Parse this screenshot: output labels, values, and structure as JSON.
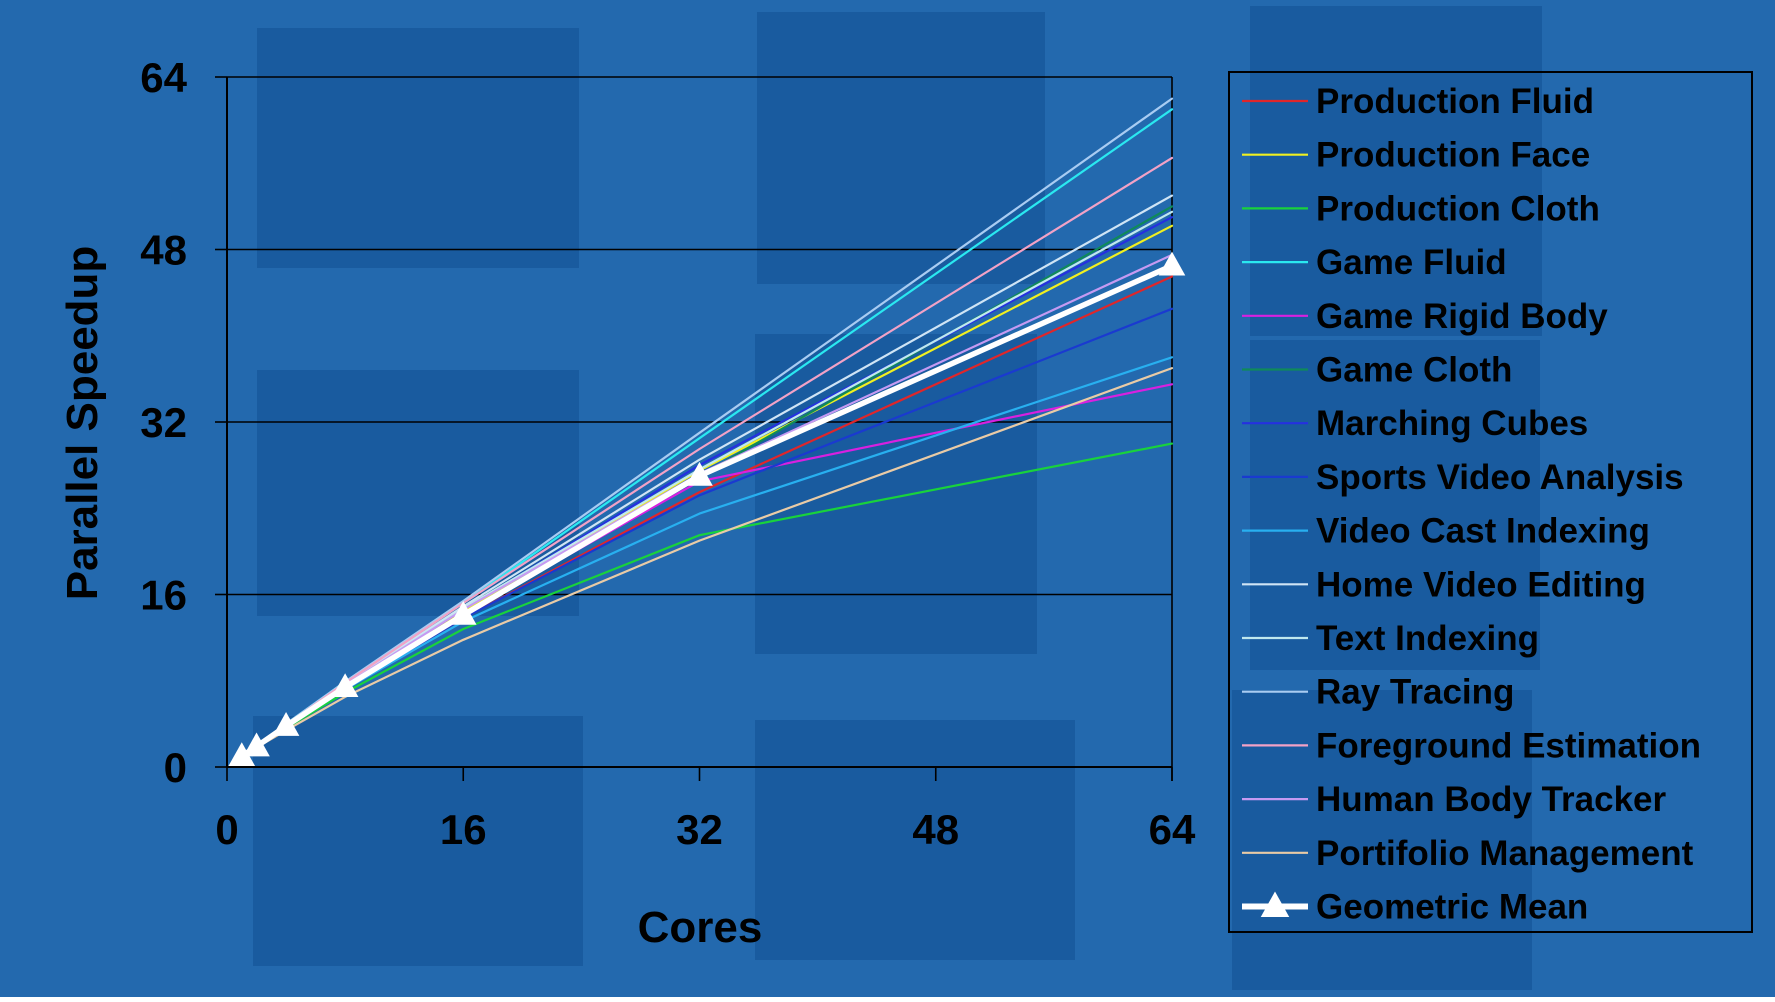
{
  "colors": {
    "background": "#2369ae",
    "panel": "#17579a",
    "axis": "#000000",
    "text": "#000000"
  },
  "chart_data": {
    "type": "line",
    "title": "",
    "xlabel": "Cores",
    "ylabel": "Parallel Speedup",
    "xlim": [
      0,
      64
    ],
    "ylim": [
      0,
      64
    ],
    "xticks": [
      0,
      16,
      32,
      48,
      64
    ],
    "yticks": [
      0,
      16,
      32,
      48,
      64
    ],
    "grid": "horizontal",
    "legend_position": "right",
    "x": [
      1,
      2,
      4,
      8,
      16,
      32,
      64
    ],
    "series": [
      {
        "name": "Production Fluid",
        "color": "#e0262a",
        "values": [
          1,
          1.9,
          3.8,
          7.3,
          13.8,
          25.5,
          45.5
        ]
      },
      {
        "name": "Production Face",
        "color": "#f0f020",
        "values": [
          1,
          1.9,
          3.9,
          7.6,
          14.5,
          27.5,
          50.2
        ]
      },
      {
        "name": "Production Cloth",
        "color": "#19d23c",
        "values": [
          1,
          1.9,
          3.6,
          6.9,
          12.8,
          21.5,
          30
        ]
      },
      {
        "name": "Game Fluid",
        "color": "#2ae8f0",
        "values": [
          1,
          2,
          4,
          7.9,
          15.2,
          30.5,
          61
        ]
      },
      {
        "name": "Game Rigid Body",
        "color": "#d820e0",
        "values": [
          1,
          1.9,
          3.8,
          7.5,
          14.2,
          26.5,
          35.5
        ]
      },
      {
        "name": "Game Cloth",
        "color": "#0f8a5a",
        "values": [
          1,
          1.9,
          3.8,
          7.4,
          14,
          27,
          52
        ]
      },
      {
        "name": "Marching Cubes",
        "color": "#2530e0",
        "values": [
          1,
          1.9,
          3.9,
          7.6,
          14.6,
          28,
          51
        ]
      },
      {
        "name": "Sports Video Analysis",
        "color": "#1a3ad0",
        "values": [
          1,
          1.9,
          3.8,
          7.3,
          13.8,
          25.2,
          42.5
        ]
      },
      {
        "name": "Video Cast Indexing",
        "color": "#28b0f0",
        "values": [
          1,
          1.9,
          3.7,
          7.2,
          13.5,
          23.5,
          38
        ]
      },
      {
        "name": "Home Video Editing",
        "color": "#cfe4f5",
        "values": [
          1,
          1.9,
          3.9,
          7.7,
          14.9,
          28.5,
          53
        ]
      },
      {
        "name": "Text Indexing",
        "color": "#bfe8ee",
        "values": [
          1,
          1.9,
          3.9,
          7.6,
          14.7,
          27.6,
          51.5
        ]
      },
      {
        "name": "Ray Tracing",
        "color": "#a9ccf2",
        "values": [
          1,
          2,
          4,
          7.9,
          15.4,
          31,
          62
        ]
      },
      {
        "name": "Foreground Estimation",
        "color": "#f2a2c6",
        "values": [
          1,
          2,
          3.9,
          7.8,
          15.2,
          29.5,
          56.5
        ]
      },
      {
        "name": "Human Body Tracker",
        "color": "#c59af2",
        "values": [
          1,
          1.9,
          3.9,
          7.6,
          14.6,
          27.2,
          47.5
        ]
      },
      {
        "name": "Portifolio Management",
        "color": "#e9cba6",
        "values": [
          1,
          1.8,
          3.4,
          6.5,
          11.8,
          21,
          37
        ]
      },
      {
        "name": "Geometric Mean",
        "color": "#ffffff",
        "marker": "triangle",
        "values": [
          1,
          1.9,
          3.8,
          7.4,
          14.1,
          27,
          46.5
        ]
      }
    ]
  }
}
